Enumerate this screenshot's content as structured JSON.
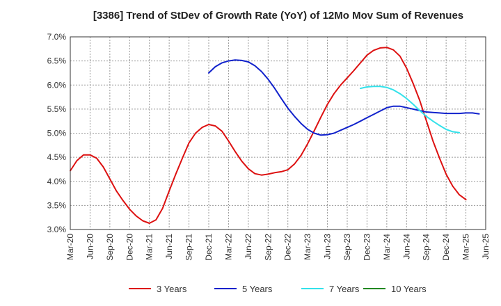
{
  "chart_data": {
    "type": "line",
    "title": "[3386]  Trend of StDev of Growth Rate (YoY) of 12Mo Mov Sum of Revenues",
    "xlabel": "",
    "ylabel": "",
    "ylim": [
      3.0,
      7.0
    ],
    "yticks": [
      "3.0%",
      "3.5%",
      "4.0%",
      "4.5%",
      "5.0%",
      "5.5%",
      "6.0%",
      "6.5%",
      "7.0%"
    ],
    "yvalues": [
      3.0,
      3.5,
      4.0,
      4.5,
      5.0,
      5.5,
      6.0,
      6.5,
      7.0
    ],
    "xticks": [
      "Mar-20",
      "Jun-20",
      "Sep-20",
      "Dec-20",
      "Mar-21",
      "Jun-21",
      "Sep-21",
      "Dec-21",
      "Mar-22",
      "Jun-22",
      "Sep-22",
      "Dec-22",
      "Mar-23",
      "Jun-23",
      "Sep-23",
      "Dec-23",
      "Mar-24",
      "Jun-24",
      "Sep-24",
      "Dec-24",
      "Mar-25",
      "Jun-25"
    ],
    "grid": true,
    "legend_position": "bottom",
    "series": [
      {
        "name": "3 Years",
        "color": "#dd1111",
        "start_index": 0,
        "values": [
          4.22,
          4.43,
          4.55,
          4.55,
          4.48,
          4.3,
          4.05,
          3.8,
          3.6,
          3.42,
          3.28,
          3.18,
          3.13,
          3.2,
          3.44,
          3.8,
          4.15,
          4.48,
          4.8,
          5.0,
          5.12,
          5.18,
          5.15,
          5.04,
          4.84,
          4.62,
          4.42,
          4.26,
          4.16,
          4.13,
          4.15,
          4.18,
          4.2,
          4.24,
          4.36,
          4.54,
          4.78,
          5.05,
          5.33,
          5.6,
          5.82,
          6.0,
          6.15,
          6.3,
          6.46,
          6.62,
          6.72,
          6.77,
          6.78,
          6.73,
          6.6,
          6.35,
          6.03,
          5.68,
          5.26,
          4.84,
          4.48,
          4.15,
          3.9,
          3.72,
          3.62
        ]
      },
      {
        "name": "5 Years",
        "color": "#1122cc",
        "start_index": 21,
        "values": [
          6.25,
          6.38,
          6.46,
          6.5,
          6.52,
          6.51,
          6.48,
          6.4,
          6.28,
          6.12,
          5.93,
          5.72,
          5.52,
          5.35,
          5.2,
          5.08,
          5.0,
          4.96,
          4.97,
          5.0,
          5.06,
          5.12,
          5.18,
          5.25,
          5.32,
          5.39,
          5.46,
          5.53,
          5.56,
          5.56,
          5.53,
          5.5,
          5.47,
          5.44,
          5.43,
          5.42,
          5.41,
          5.41,
          5.41,
          5.42,
          5.42,
          5.4
        ]
      },
      {
        "name": "7 Years",
        "color": "#33e1ea",
        "start_index": 44,
        "values": [
          5.93,
          5.96,
          5.97,
          5.97,
          5.95,
          5.9,
          5.82,
          5.72,
          5.6,
          5.47,
          5.35,
          5.25,
          5.16,
          5.08,
          5.03,
          5.01
        ]
      },
      {
        "name": "10 Years",
        "color": "#228822",
        "start_index": 0,
        "values": []
      }
    ]
  }
}
